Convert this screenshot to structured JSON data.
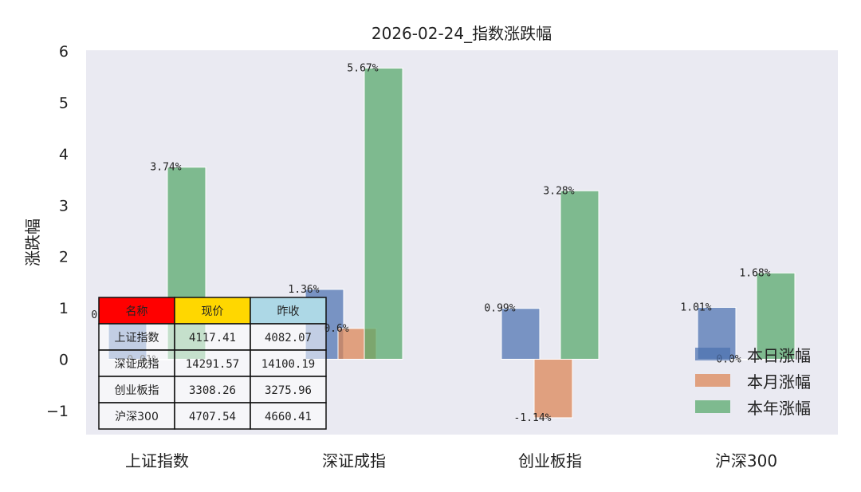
{
  "chart_data": {
    "type": "bar",
    "title": "2026-02-24_指数涨跌幅",
    "ylabel": "涨跌幅",
    "xlabel": "",
    "categories": [
      "上证指数",
      "深证成指",
      "创业板指",
      "沪深300"
    ],
    "ylim": [
      -1.5,
      6
    ],
    "yticks": [
      -1,
      0,
      1,
      2,
      3,
      4,
      5,
      6
    ],
    "ytick_labels": [
      "−1",
      "0",
      "1",
      "2",
      "3",
      "4",
      "5",
      "6"
    ],
    "grid": false,
    "legend_position": "bottom-right",
    "series": [
      {
        "name": "本日涨幅",
        "color": "#4c72b0",
        "values": [
          0.86,
          1.36,
          0.99,
          1.01
        ],
        "labels": [
          "0.86%",
          "1.36%",
          "0.99%",
          "1.01%"
        ]
      },
      {
        "name": "本月涨幅",
        "color": "#dd8452",
        "values": [
          -0.01,
          0.6,
          -1.14,
          0.0
        ],
        "labels": [
          "-0.01%",
          "0.6%",
          "-1.14%",
          "0.0%"
        ]
      },
      {
        "name": "本年涨幅",
        "color": "#55a868",
        "values": [
          3.74,
          5.67,
          3.28,
          1.68
        ],
        "labels": [
          "3.74%",
          "5.67%",
          "3.28%",
          "1.68%"
        ]
      }
    ]
  },
  "table": {
    "headers": [
      "名称",
      "现价",
      "昨收"
    ],
    "header_colors": [
      "#ff0000",
      "#ffd700",
      "#add8e6"
    ],
    "rows": [
      [
        "上证指数",
        "4117.41",
        "4082.07"
      ],
      [
        "深证成指",
        "14291.57",
        "14100.19"
      ],
      [
        "创业板指",
        "3308.26",
        "3275.96"
      ],
      [
        "沪深300",
        "4707.54",
        "4660.41"
      ]
    ]
  }
}
